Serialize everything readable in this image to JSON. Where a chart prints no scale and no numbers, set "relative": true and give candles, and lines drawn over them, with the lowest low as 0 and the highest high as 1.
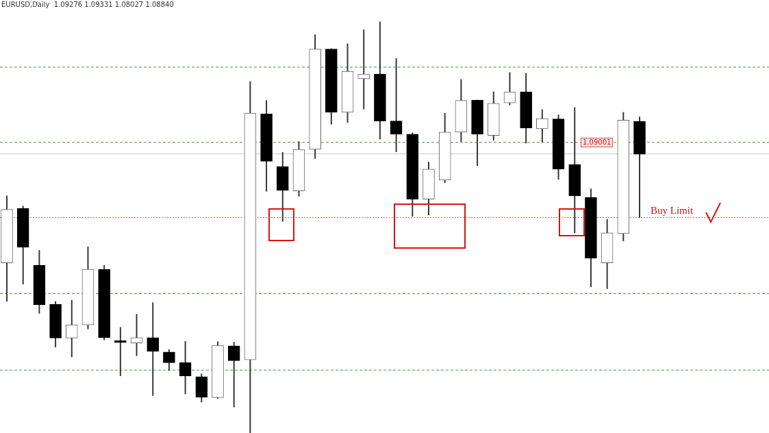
{
  "chart_data": {
    "type": "candlestick",
    "title": "EURUSD,Daily  1.09276 1.09331 1.08027 1.08840",
    "relative": true,
    "categories": [
      null,
      null,
      null,
      null,
      null,
      null,
      null,
      null,
      null,
      null,
      null,
      null,
      null,
      null,
      null,
      null,
      null,
      null,
      null,
      null,
      null,
      null,
      null,
      null,
      null,
      null,
      null,
      null,
      null,
      null,
      null,
      null,
      null,
      null,
      null,
      null,
      null,
      null,
      null,
      null
    ],
    "ohlc": [
      [
        0.414,
        0.577,
        0.32,
        0.544
      ],
      [
        0.546,
        0.552,
        0.362,
        0.452
      ],
      [
        0.408,
        0.444,
        0.291,
        0.312
      ],
      [
        0.313,
        0.32,
        0.209,
        0.231
      ],
      [
        0.231,
        0.323,
        0.185,
        0.263
      ],
      [
        0.263,
        0.453,
        0.253,
        0.398
      ],
      [
        0.398,
        0.408,
        0.226,
        0.232
      ],
      [
        0.225,
        0.257,
        0.139,
        0.22
      ],
      [
        0.219,
        0.289,
        0.188,
        0.232
      ],
      [
        0.232,
        0.317,
        0.091,
        0.199
      ],
      [
        0.197,
        0.203,
        0.152,
        0.171
      ],
      [
        0.171,
        0.223,
        0.095,
        0.139
      ],
      [
        0.137,
        0.144,
        0.075,
        0.087
      ],
      [
        0.086,
        0.222,
        0.084,
        0.213
      ],
      [
        0.212,
        0.221,
        0.063,
        0.176
      ],
      [
        0.178,
        0.855,
        0,
        0.778
      ],
      [
        0.776,
        0.809,
        0.588,
        0.661
      ],
      [
        0.648,
        0.683,
        0.515,
        0.59
      ],
      [
        0.589,
        0.709,
        0.576,
        0.69
      ],
      [
        0.69,
        0.969,
        0.668,
        0.934
      ],
      [
        0.934,
        0.935,
        0.751,
        0.78
      ],
      [
        0.78,
        0.947,
        0.755,
        0.88
      ],
      [
        0.862,
        0.981,
        0.788,
        0.873
      ],
      [
        0.873,
        1,
        0.715,
        0.759
      ],
      [
        0.759,
        0.911,
        0.684,
        0.727
      ],
      [
        0.727,
        0.73,
        0.527,
        0.569
      ],
      [
        0.569,
        0.659,
        0.53,
        0.642
      ],
      [
        0.615,
        0.778,
        0.609,
        0.732
      ],
      [
        0.732,
        0.86,
        0.709,
        0.809
      ],
      [
        0.81,
        0.81,
        0.65,
        0.727
      ],
      [
        0.724,
        0.83,
        0.712,
        0.802
      ],
      [
        0.803,
        0.877,
        0.798,
        0.83
      ],
      [
        0.83,
        0.875,
        0.705,
        0.742
      ],
      [
        0.74,
        0.787,
        0.708,
        0.765
      ],
      [
        0.764,
        0.774,
        0.617,
        0.642
      ],
      [
        0.653,
        0.792,
        0.487,
        0.577
      ],
      [
        0.573,
        0.594,
        0.356,
        0.425
      ],
      [
        0.414,
        0.52,
        0.351,
        0.487
      ],
      [
        0.485,
        0.78,
        0.467,
        0.761
      ],
      [
        0.758,
        0.769,
        0.524,
        0.678
      ]
    ],
    "colors": [
      "#666666",
      "#000000",
      "#000000",
      "#000000",
      "#666666",
      "#666666",
      "#000000",
      "#000000",
      "#666666",
      "#000000",
      "#000000",
      "#000000",
      "#000000",
      "#666666",
      "#000000",
      "#666666",
      "#000000",
      "#000000",
      "#666666",
      "#666666",
      "#000000",
      "#666666",
      "#666666",
      "#000000",
      "#000000",
      "#000000",
      "#666666",
      "#666666",
      "#666666",
      "#000000",
      "#666666",
      "#666666",
      "#000000",
      "#666666",
      "#000000",
      "#000000",
      "#000000",
      "#666666",
      "#666666",
      "#000000"
    ],
    "annotations": [
      "1.09001"
    ],
    "ref_lines": [
      {
        "axis": "y",
        "value": 0.89,
        "color": "#3f9a3f",
        "line_style": "dashed"
      },
      {
        "axis": "y",
        "value": 0.707,
        "color": "#3f9a3f",
        "line_style": "dashed"
      },
      {
        "axis": "y",
        "value": 0.679,
        "color": "#c8c8c8",
        "line_style": "solid"
      },
      {
        "axis": "y",
        "value": 0.524,
        "color": "#d9534f",
        "line_style": "dotted",
        "label": "Buy Limit"
      },
      {
        "axis": "y",
        "value": 0.339,
        "color": "#3f9a3f",
        "line_style": "dashed"
      },
      {
        "axis": "y",
        "value": 0.153,
        "color": "#3f9a3f",
        "line_style": "dashed"
      }
    ]
  }
}
